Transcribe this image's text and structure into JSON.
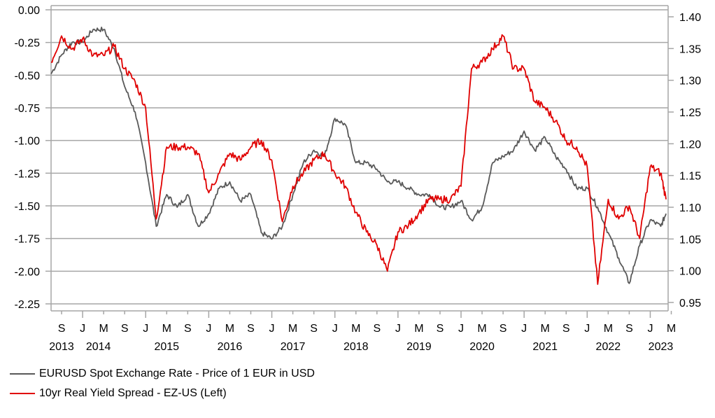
{
  "chart_data": {
    "type": "line",
    "title": "",
    "xlabel": "",
    "ylabel_left": "",
    "ylabel_right": "",
    "x_range": [
      "2013-07",
      "2023-04"
    ],
    "left_axis": {
      "ylim": [
        -2.3,
        0.0
      ],
      "ticks": [
        "0.00",
        "-0.25",
        "-0.50",
        "-0.75",
        "-1.00",
        "-1.25",
        "-1.50",
        "-1.75",
        "-2.00",
        "-2.25"
      ],
      "tick_values": [
        0,
        -0.25,
        -0.5,
        -0.75,
        -1.0,
        -1.25,
        -1.5,
        -1.75,
        -2.0,
        -2.25
      ]
    },
    "right_axis": {
      "ylim": [
        0.94,
        1.41
      ],
      "ticks": [
        "1.40",
        "1.35",
        "1.30",
        "1.25",
        "1.20",
        "1.15",
        "1.10",
        "1.05",
        "1.00",
        "0.95"
      ],
      "tick_values": [
        1.4,
        1.35,
        1.3,
        1.25,
        1.2,
        1.15,
        1.1,
        1.05,
        1.0,
        0.95
      ]
    },
    "x_ticks": [
      {
        "label": "S",
        "date": "2013-09"
      },
      {
        "label": "J",
        "date": "2014-01"
      },
      {
        "label": "M",
        "date": "2014-05"
      },
      {
        "label": "S",
        "date": "2014-09"
      },
      {
        "label": "J",
        "date": "2015-01"
      },
      {
        "label": "M",
        "date": "2015-05"
      },
      {
        "label": "S",
        "date": "2015-09"
      },
      {
        "label": "J",
        "date": "2016-01"
      },
      {
        "label": "M",
        "date": "2016-05"
      },
      {
        "label": "S",
        "date": "2016-09"
      },
      {
        "label": "J",
        "date": "2017-01"
      },
      {
        "label": "M",
        "date": "2017-05"
      },
      {
        "label": "S",
        "date": "2017-09"
      },
      {
        "label": "J",
        "date": "2018-01"
      },
      {
        "label": "M",
        "date": "2018-05"
      },
      {
        "label": "S",
        "date": "2018-09"
      },
      {
        "label": "J",
        "date": "2019-01"
      },
      {
        "label": "M",
        "date": "2019-05"
      },
      {
        "label": "S",
        "date": "2019-09"
      },
      {
        "label": "J",
        "date": "2020-01"
      },
      {
        "label": "M",
        "date": "2020-05"
      },
      {
        "label": "S",
        "date": "2020-09"
      },
      {
        "label": "J",
        "date": "2021-01"
      },
      {
        "label": "M",
        "date": "2021-05"
      },
      {
        "label": "S",
        "date": "2021-09"
      },
      {
        "label": "J",
        "date": "2022-01"
      },
      {
        "label": "M",
        "date": "2022-05"
      },
      {
        "label": "S",
        "date": "2022-09"
      },
      {
        "label": "J",
        "date": "2023-01"
      },
      {
        "label": "M",
        "date": "2023-05"
      }
    ],
    "year_labels": [
      {
        "label": "2013",
        "date": "2013-09"
      },
      {
        "label": "2014",
        "date": "2014-04"
      },
      {
        "label": "2015",
        "date": "2015-05"
      },
      {
        "label": "2016",
        "date": "2016-05"
      },
      {
        "label": "2017",
        "date": "2017-05"
      },
      {
        "label": "2018",
        "date": "2018-05"
      },
      {
        "label": "2019",
        "date": "2019-05"
      },
      {
        "label": "2020",
        "date": "2020-05"
      },
      {
        "label": "2021",
        "date": "2021-05"
      },
      {
        "label": "2022",
        "date": "2022-05"
      },
      {
        "label": "2023",
        "date": "2023-03"
      }
    ],
    "grid": true,
    "legend_position": "bottom-left",
    "series": [
      {
        "name": "EURUSD Spot Exchange Rate - Price of 1 EUR in USD",
        "axis": "right",
        "color": "#595959",
        "x": [
          "2013-07",
          "2013-09",
          "2013-11",
          "2014-01",
          "2014-03",
          "2014-05",
          "2014-07",
          "2014-09",
          "2014-11",
          "2015-01",
          "2015-03",
          "2015-05",
          "2015-07",
          "2015-09",
          "2015-11",
          "2016-01",
          "2016-03",
          "2016-05",
          "2016-07",
          "2016-09",
          "2016-11",
          "2017-01",
          "2017-03",
          "2017-05",
          "2017-07",
          "2017-09",
          "2017-11",
          "2018-01",
          "2018-03",
          "2018-05",
          "2018-07",
          "2018-09",
          "2018-11",
          "2019-01",
          "2019-03",
          "2019-05",
          "2019-07",
          "2019-09",
          "2019-11",
          "2020-01",
          "2020-03",
          "2020-05",
          "2020-07",
          "2020-09",
          "2020-11",
          "2021-01",
          "2021-03",
          "2021-05",
          "2021-07",
          "2021-09",
          "2021-11",
          "2022-01",
          "2022-03",
          "2022-05",
          "2022-07",
          "2022-09",
          "2022-11",
          "2023-01",
          "2023-03",
          "2023-04"
        ],
        "values": [
          1.31,
          1.34,
          1.36,
          1.36,
          1.38,
          1.38,
          1.35,
          1.29,
          1.25,
          1.17,
          1.07,
          1.12,
          1.1,
          1.12,
          1.07,
          1.09,
          1.13,
          1.14,
          1.11,
          1.12,
          1.06,
          1.05,
          1.07,
          1.12,
          1.17,
          1.19,
          1.18,
          1.24,
          1.23,
          1.17,
          1.17,
          1.16,
          1.14,
          1.14,
          1.13,
          1.12,
          1.12,
          1.1,
          1.1,
          1.11,
          1.08,
          1.1,
          1.17,
          1.18,
          1.19,
          1.22,
          1.19,
          1.21,
          1.18,
          1.16,
          1.13,
          1.13,
          1.1,
          1.06,
          1.02,
          0.98,
          1.04,
          1.08,
          1.07,
          1.09
        ]
      },
      {
        "name": "10yr Real Yield Spread - EZ-US (Left)",
        "axis": "left",
        "color": "#E00000",
        "x": [
          "2013-07",
          "2013-09",
          "2013-11",
          "2014-01",
          "2014-03",
          "2014-05",
          "2014-07",
          "2014-09",
          "2014-11",
          "2015-01",
          "2015-03",
          "2015-05",
          "2015-07",
          "2015-09",
          "2015-11",
          "2016-01",
          "2016-03",
          "2016-05",
          "2016-07",
          "2016-09",
          "2016-11",
          "2017-01",
          "2017-03",
          "2017-05",
          "2017-07",
          "2017-09",
          "2017-11",
          "2018-01",
          "2018-03",
          "2018-05",
          "2018-07",
          "2018-09",
          "2018-11",
          "2019-01",
          "2019-03",
          "2019-05",
          "2019-07",
          "2019-09",
          "2019-11",
          "2020-01",
          "2020-03",
          "2020-05",
          "2020-07",
          "2020-09",
          "2020-11",
          "2021-01",
          "2021-03",
          "2021-05",
          "2021-07",
          "2021-09",
          "2021-11",
          "2022-01",
          "2022-03",
          "2022-05",
          "2022-07",
          "2022-09",
          "2022-11",
          "2023-01",
          "2023-03",
          "2023-04"
        ],
        "values": [
          -0.4,
          -0.2,
          -0.3,
          -0.22,
          -0.35,
          -0.35,
          -0.28,
          -0.45,
          -0.55,
          -0.75,
          -1.6,
          -1.05,
          -1.05,
          -1.05,
          -1.1,
          -1.4,
          -1.25,
          -1.1,
          -1.15,
          -1.05,
          -1.0,
          -1.15,
          -1.62,
          -1.35,
          -1.25,
          -1.15,
          -1.1,
          -1.25,
          -1.35,
          -1.55,
          -1.7,
          -1.8,
          -2.0,
          -1.7,
          -1.65,
          -1.55,
          -1.45,
          -1.45,
          -1.45,
          -1.35,
          -0.45,
          -0.4,
          -0.3,
          -0.2,
          -0.45,
          -0.45,
          -0.7,
          -0.75,
          -0.85,
          -1.0,
          -1.05,
          -1.2,
          -2.1,
          -1.45,
          -1.6,
          -1.5,
          -1.75,
          -1.2,
          -1.25,
          -1.45
        ]
      }
    ]
  },
  "legend": {
    "items": [
      {
        "label": "EURUSD Spot Exchange Rate - Price of 1 EUR in USD",
        "color": "#595959"
      },
      {
        "label": "10yr Real Yield Spread - EZ-US (Left)",
        "color": "#E00000"
      }
    ]
  }
}
